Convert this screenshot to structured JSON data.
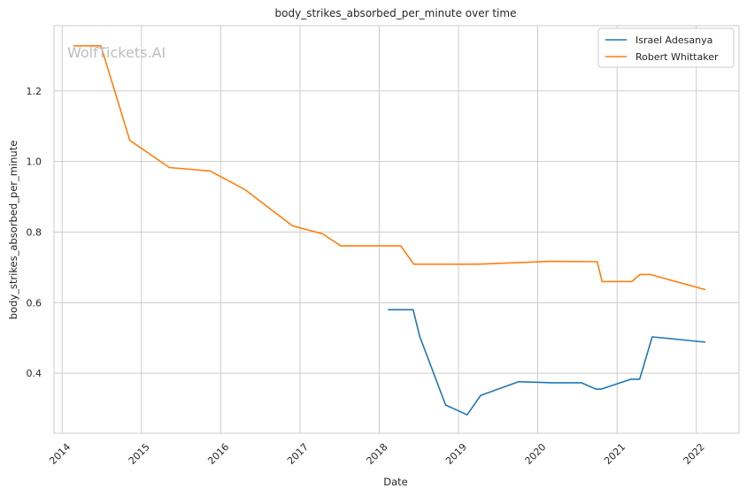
{
  "chart_data": {
    "type": "line",
    "title": "body_strikes_absorbed_per_minute over time",
    "xlabel": "Date",
    "ylabel": "body_strikes_absorbed_per_minute",
    "watermark": "WolfTickets.AI",
    "xlim": [
      "2013-11-24",
      "2022-07-17"
    ],
    "ylim": [
      0.23,
      1.385
    ],
    "x_ticks": [
      "2014",
      "2015",
      "2016",
      "2017",
      "2018",
      "2019",
      "2020",
      "2021",
      "2022"
    ],
    "y_ticks": [
      "0.4",
      "0.6",
      "0.8",
      "1.0",
      "1.2"
    ],
    "grid": true,
    "legend_position": "top-right",
    "series": [
      {
        "name": "Israel Adesanya",
        "color": "#1f77b4",
        "points": [
          [
            "2018-02-10",
            0.58
          ],
          [
            "2018-06-06",
            0.58
          ],
          [
            "2018-07-06",
            0.505
          ],
          [
            "2018-11-03",
            0.31
          ],
          [
            "2019-02-10",
            0.282
          ],
          [
            "2019-04-13",
            0.337
          ],
          [
            "2019-10-05",
            0.376
          ],
          [
            "2020-03-07",
            0.373
          ],
          [
            "2020-07-20",
            0.373
          ],
          [
            "2020-09-26",
            0.355
          ],
          [
            "2020-10-20",
            0.355
          ],
          [
            "2021-03-06",
            0.383
          ],
          [
            "2021-04-15",
            0.383
          ],
          [
            "2021-06-12",
            0.503
          ],
          [
            "2022-02-12",
            0.488
          ]
        ]
      },
      {
        "name": "Robert Whittaker",
        "color": "#ff7f0e",
        "points": [
          [
            "2014-02-22",
            1.328
          ],
          [
            "2014-06-28",
            1.328
          ],
          [
            "2014-11-08",
            1.06
          ],
          [
            "2015-05-10",
            0.983
          ],
          [
            "2015-11-14",
            0.973
          ],
          [
            "2016-04-23",
            0.92
          ],
          [
            "2016-11-26",
            0.818
          ],
          [
            "2017-04-15",
            0.795
          ],
          [
            "2017-07-08",
            0.761
          ],
          [
            "2018-04-10",
            0.761
          ],
          [
            "2018-06-09",
            0.709
          ],
          [
            "2019-04-01",
            0.709
          ],
          [
            "2020-03-01",
            0.717
          ],
          [
            "2020-10-01",
            0.716
          ],
          [
            "2020-10-24",
            0.66
          ],
          [
            "2021-03-10",
            0.66
          ],
          [
            "2021-04-17",
            0.68
          ],
          [
            "2021-06-01",
            0.68
          ],
          [
            "2022-02-12",
            0.637
          ]
        ]
      }
    ]
  }
}
